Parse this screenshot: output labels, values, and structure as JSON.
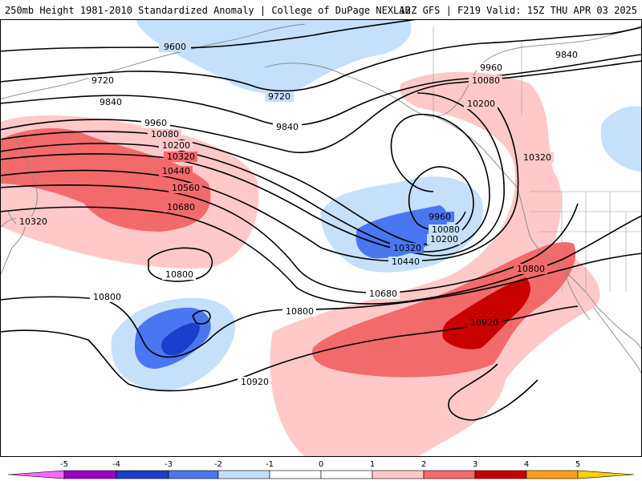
{
  "header": {
    "title_left": "250mb Height 1981-2010 Standardized Anomaly | College of DuPage NEXLAB",
    "title_right": "12Z GFS | F219 Valid: 15Z THU APR 03 2025"
  },
  "colors": {
    "anom_neg5": "#ff66ff",
    "anom_neg4": "#9900cc",
    "anom_neg3": "#1a3fcc",
    "anom_neg2": "#4a76f2",
    "anom_neg1": "#c5e0fb",
    "anom_0": "#ffffff",
    "anom_pos1": "#ffc9c9",
    "anom_pos2": "#f36a6a",
    "anom_pos3": "#c80000",
    "anom_pos4": "#ff9f1a",
    "anom_pos5": "#ffd000",
    "contour": "#000000",
    "coast": "#888888"
  },
  "contour_labels": [
    {
      "id": "c9600-a",
      "text": "9600"
    },
    {
      "id": "c9720-a",
      "text": "9720"
    },
    {
      "id": "c9720-b",
      "text": "9720"
    },
    {
      "id": "c9840-a",
      "text": "9840"
    },
    {
      "id": "c9840-b",
      "text": "9840"
    },
    {
      "id": "c9840-c",
      "text": "9840"
    },
    {
      "id": "c9960-a",
      "text": "9960"
    },
    {
      "id": "c9960-b",
      "text": "9960"
    },
    {
      "id": "c9960-c",
      "text": "9960"
    },
    {
      "id": "c10080-a",
      "text": "10080"
    },
    {
      "id": "c10080-b",
      "text": "10080"
    },
    {
      "id": "c10080-c",
      "text": "10080"
    },
    {
      "id": "c10200-a",
      "text": "10200"
    },
    {
      "id": "c10200-b",
      "text": "10200"
    },
    {
      "id": "c10200-c",
      "text": "10200"
    },
    {
      "id": "c10320-a",
      "text": "10320"
    },
    {
      "id": "c10320-b",
      "text": "10320"
    },
    {
      "id": "c10320-c",
      "text": "10320"
    },
    {
      "id": "c10320-d",
      "text": "10320"
    },
    {
      "id": "c10440-a",
      "text": "10440"
    },
    {
      "id": "c10440-b",
      "text": "10440"
    },
    {
      "id": "c10560-a",
      "text": "10560"
    },
    {
      "id": "c10680-a",
      "text": "10680"
    },
    {
      "id": "c10680-b",
      "text": "10680"
    },
    {
      "id": "c10800-a",
      "text": "10800"
    },
    {
      "id": "c10800-b",
      "text": "10800"
    },
    {
      "id": "c10800-c",
      "text": "10800"
    },
    {
      "id": "c10800-d",
      "text": "10800"
    },
    {
      "id": "c10920-a",
      "text": "10920"
    },
    {
      "id": "c10920-b",
      "text": "10920"
    }
  ],
  "colorbar": {
    "ticks": [
      "-5",
      "-4",
      "-3",
      "-2",
      "-1",
      "0",
      "1",
      "2",
      "3",
      "4",
      "5"
    ]
  }
}
